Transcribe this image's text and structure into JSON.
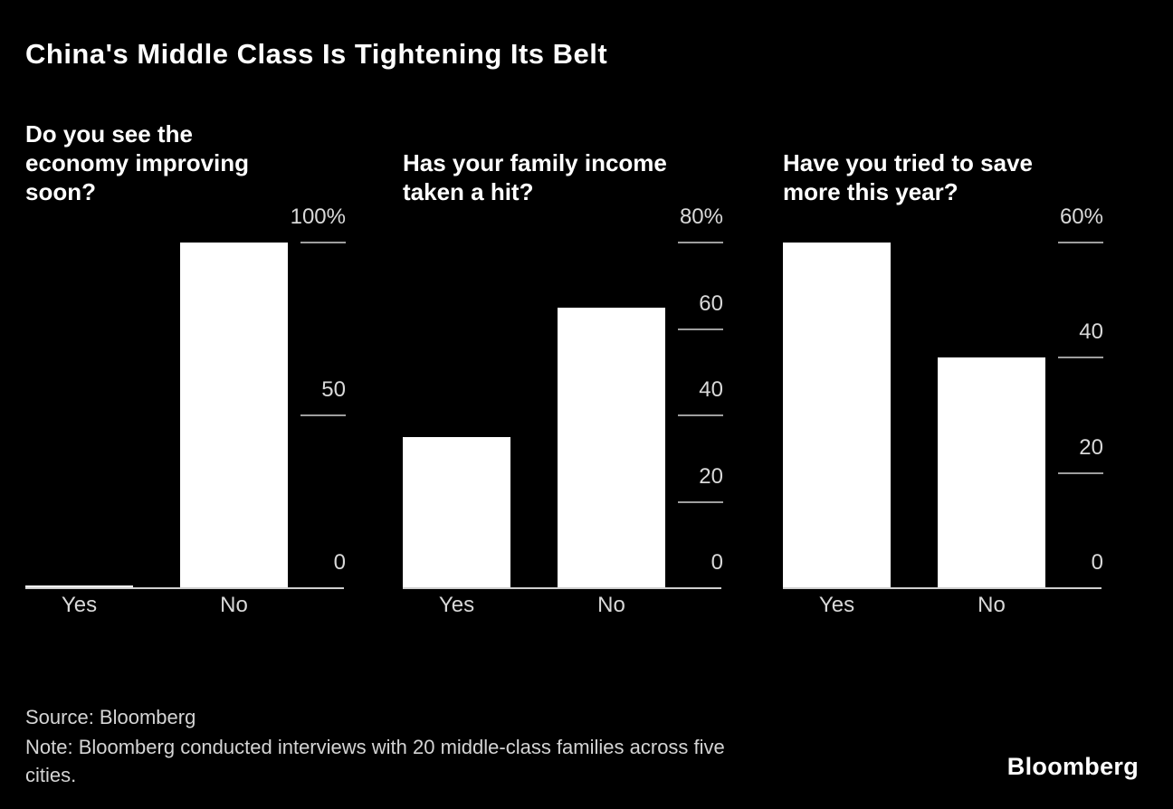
{
  "title": "China's Middle Class Is Tightening Its Belt",
  "footer": {
    "source": "Source: Bloomberg",
    "note": "Note: Bloomberg conducted interviews with 20 middle-class families across five\ncities.",
    "logo": "Bloomberg"
  },
  "colors": {
    "background": "#000000",
    "bar": "#ffffff",
    "heading_text": "#ffffff",
    "tick_text": "#d9d9d9",
    "axis_line": "#cfcfcf",
    "tick_dash": "#9e9e9e",
    "footer_text": "#d4d4d4"
  },
  "chart_data": [
    {
      "type": "bar",
      "question": "Do you see the\neconomy improving\nsoon?",
      "categories": [
        "Yes",
        "No"
      ],
      "values": [
        0,
        100
      ],
      "ylabel": "%",
      "ylim": [
        0,
        100
      ],
      "yticks": [
        0,
        50,
        100
      ],
      "ytick_labels": [
        "0",
        "50",
        "100%"
      ],
      "grid": false,
      "legend": "none"
    },
    {
      "type": "bar",
      "question": "Has your family income\ntaken a hit?",
      "categories": [
        "Yes",
        "No"
      ],
      "values": [
        35,
        65
      ],
      "ylabel": "%",
      "ylim": [
        0,
        80
      ],
      "yticks": [
        0,
        20,
        40,
        60,
        80
      ],
      "ytick_labels": [
        "0",
        "20",
        "40",
        "60",
        "80%"
      ],
      "grid": false,
      "legend": "none"
    },
    {
      "type": "bar",
      "question": "Have you tried to save\nmore this year?",
      "categories": [
        "Yes",
        "No"
      ],
      "values": [
        60,
        40
      ],
      "ylabel": "%",
      "ylim": [
        0,
        60
      ],
      "yticks": [
        0,
        20,
        40,
        60
      ],
      "ytick_labels": [
        "0",
        "20",
        "40",
        "60%"
      ],
      "grid": false,
      "legend": "none"
    }
  ]
}
